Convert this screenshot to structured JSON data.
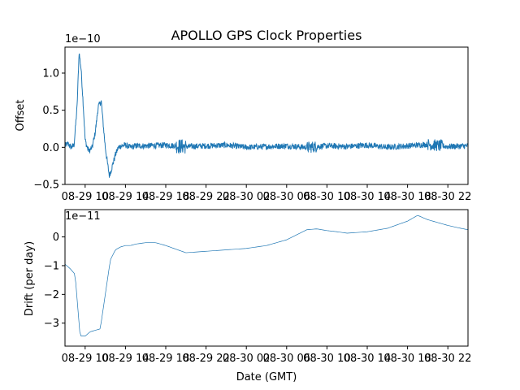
{
  "chart_data": [
    {
      "type": "line",
      "title": "APOLLO GPS Clock Properties",
      "ylabel": "Offset",
      "xlabel": "",
      "offset_text": "1e−10",
      "x_range": [
        "08-29 08:00",
        "08-31 00:00"
      ],
      "xticks": [
        "08-29 10",
        "08-29 14",
        "08-29 18",
        "08-29 22",
        "08-30 02",
        "08-30 06",
        "08-30 10",
        "08-30 14",
        "08-30 18",
        "08-30 22"
      ],
      "ylim": [
        -0.5,
        1.35
      ],
      "yticks": [
        1.0,
        0.5,
        0.0,
        -0.5
      ],
      "ytick_labels": [
        "1.0",
        "0.5",
        "0.0",
        "−0.5"
      ],
      "grid": false,
      "color": "#1f77b4",
      "series": [
        {
          "x_hours": [
            0,
            0.3,
            0.6,
            0.9,
            1.2,
            1.4,
            1.6,
            1.8,
            2.0,
            2.2,
            2.4,
            2.7,
            3.0,
            3.3,
            3.6,
            3.8,
            4.0,
            4.2,
            4.4,
            4.6,
            4.8,
            5.0,
            5.3,
            5.6,
            6.0,
            6.5,
            7.0,
            8,
            10,
            12,
            14,
            16,
            18,
            20,
            22,
            24,
            26,
            28,
            30,
            32,
            34,
            36,
            38,
            40
          ],
          "values": [
            0.02,
            0.05,
            0.0,
            0.03,
            0.55,
            1.28,
            1.05,
            0.6,
            0.1,
            0.0,
            -0.05,
            0.0,
            0.2,
            0.55,
            0.62,
            0.3,
            0.0,
            -0.2,
            -0.38,
            -0.3,
            -0.2,
            -0.1,
            0.0,
            0.02,
            0.03,
            0.0,
            0.02,
            0.02,
            0.03,
            0.01,
            0.02,
            0.03,
            0.0,
            0.01,
            0.02,
            0.0,
            0.02,
            0.01,
            0.03,
            0.0,
            0.02,
            0.04,
            0.01,
            0.02
          ],
          "noise": 0.04
        }
      ]
    },
    {
      "type": "line",
      "title": "",
      "ylabel": "Drift (per day)",
      "xlabel": "Date (GMT)",
      "offset_text": "1e−11",
      "x_range": [
        "08-29 08:00",
        "08-31 00:00"
      ],
      "xticks": [
        "08-29 10",
        "08-29 14",
        "08-29 18",
        "08-29 22",
        "08-30 02",
        "08-30 06",
        "08-30 10",
        "08-30 14",
        "08-30 18",
        "08-30 22"
      ],
      "ylim": [
        -3.8,
        0.95
      ],
      "yticks": [
        0,
        -1,
        -2,
        -3
      ],
      "ytick_labels": [
        "0",
        "−1",
        "−2",
        "−3"
      ],
      "grid": false,
      "color": "#1f77b4",
      "series": [
        {
          "x_hours": [
            0,
            0.5,
            1.0,
            1.5,
            2.0,
            2.5,
            3.0,
            3.5,
            4.0,
            4.5,
            5.0,
            5.5,
            6.0,
            6.5,
            7.0,
            8.0,
            9.0,
            10.0,
            12.0,
            14.0,
            16.0,
            18.0,
            20.0,
            22.0,
            24.0,
            25.0,
            26.0,
            27.0,
            28.0,
            30.0,
            32.0,
            34.0,
            35.0,
            36.0,
            37.0,
            38.0,
            39.0,
            40.0
          ],
          "values": [
            -0.95,
            -1.1,
            -1.3,
            -3.45,
            -3.45,
            -3.3,
            -3.25,
            -3.2,
            -2.0,
            -0.8,
            -0.45,
            -0.35,
            -0.3,
            -0.3,
            -0.25,
            -0.2,
            -0.2,
            -0.3,
            -0.55,
            -0.5,
            -0.45,
            -0.4,
            -0.3,
            -0.1,
            0.25,
            0.28,
            0.22,
            0.18,
            0.13,
            0.18,
            0.3,
            0.55,
            0.75,
            0.6,
            0.5,
            0.4,
            0.32,
            0.25
          ]
        }
      ]
    }
  ]
}
